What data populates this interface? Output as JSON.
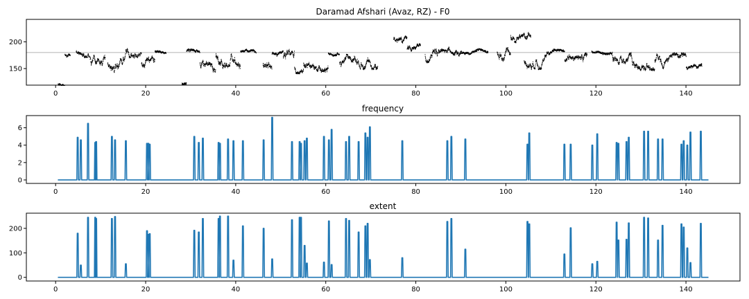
{
  "chart_data": [
    {
      "type": "scatter",
      "title": "Daramad Afshari (Avaz, RZ) - F0",
      "xlim": [
        -6.5,
        152.0
      ],
      "ylim": [
        119,
        242
      ],
      "xticks": [
        0,
        20,
        40,
        60,
        80,
        100,
        120,
        140
      ],
      "yticks": [
        150,
        200
      ],
      "reference_line": 180,
      "grid": false,
      "series": [
        {
          "segments": [
            {
              "x": [
                0.5,
                2.0
              ],
              "base": 122,
              "amp": 4
            },
            {
              "x": [
                2.0,
                3.2
              ],
              "base": 178,
              "amp": 5
            },
            {
              "x": [
                4.5,
                7.5
              ],
              "base": 182,
              "amp": 10
            },
            {
              "x": [
                7.6,
                11.0
              ],
              "base": 172,
              "amp": 18
            },
            {
              "x": [
                11.5,
                15.5
              ],
              "base": 162,
              "amp": 18
            },
            {
              "x": [
                15.5,
                19.0
              ],
              "base": 184,
              "amp": 12
            },
            {
              "x": [
                19.0,
                22.0
              ],
              "base": 162,
              "amp": 15
            },
            {
              "x": [
                22.0,
                24.5
              ],
              "base": 183,
              "amp": 3
            },
            {
              "x": [
                28.0,
                29.0
              ],
              "base": 122,
              "amp": 4
            },
            {
              "x": [
                29.0,
                32.0
              ],
              "base": 182,
              "amp": 6
            },
            {
              "x": [
                32.0,
                35.5
              ],
              "base": 160,
              "amp": 15
            },
            {
              "x": [
                35.5,
                41.0
              ],
              "base": 172,
              "amp": 20
            },
            {
              "x": [
                41.0,
                44.5
              ],
              "base": 183,
              "amp": 3
            },
            {
              "x": [
                46.0,
                48.0
              ],
              "base": 160,
              "amp": 15
            },
            {
              "x": [
                48.0,
                50.5
              ],
              "base": 180,
              "amp": 5
            },
            {
              "x": [
                50.5,
                53.0
              ],
              "base": 170,
              "amp": 18
            },
            {
              "x": [
                53.0,
                55.0
              ],
              "base": 152,
              "amp": 10
            },
            {
              "x": [
                55.0,
                60.5
              ],
              "base": 160,
              "amp": 15
            },
            {
              "x": [
                60.5,
                63.0
              ],
              "base": 180,
              "amp": 5
            },
            {
              "x": [
                63.0,
                67.0
              ],
              "base": 162,
              "amp": 15
            },
            {
              "x": [
                67.0,
                71.5
              ],
              "base": 165,
              "amp": 15
            },
            {
              "x": [
                75.0,
                78.0
              ],
              "base": 205,
              "amp": 12
            },
            {
              "x": [
                78.0,
                81.0
              ],
              "base": 186,
              "amp": 10
            },
            {
              "x": [
                82.0,
                85.5
              ],
              "base": 178,
              "amp": 15
            },
            {
              "x": [
                85.5,
                90.0
              ],
              "base": 185,
              "amp": 12
            },
            {
              "x": [
                90.0,
                96.0
              ],
              "base": 182,
              "amp": 5
            },
            {
              "x": [
                98.0,
                101.0
              ],
              "base": 180,
              "amp": 15
            },
            {
              "x": [
                101.0,
                105.5
              ],
              "base": 212,
              "amp": 12
            },
            {
              "x": [
                104.0,
                109.0
              ],
              "base": 165,
              "amp": 15
            },
            {
              "x": [
                109.0,
                113.0
              ],
              "base": 180,
              "amp": 6
            },
            {
              "x": [
                113.0,
                118.0
              ],
              "base": 166,
              "amp": 15
            },
            {
              "x": [
                119.0,
                123.5
              ],
              "base": 182,
              "amp": 4
            },
            {
              "x": [
                123.5,
                128.0
              ],
              "base": 178,
              "amp": 18
            },
            {
              "x": [
                128.0,
                133.0
              ],
              "base": 162,
              "amp": 14
            },
            {
              "x": [
                133.0,
                140.0
              ],
              "base": 165,
              "amp": 14
            },
            {
              "x": [
                140.0,
                143.5
              ],
              "base": 155,
              "amp": 8
            }
          ]
        }
      ]
    },
    {
      "type": "line",
      "title": "frequency",
      "xlim": [
        -6.5,
        152.0
      ],
      "ylim": [
        -0.4,
        7.4
      ],
      "xticks": [
        0,
        20,
        40,
        60,
        80,
        100,
        120,
        140
      ],
      "yticks": [
        0,
        2,
        4,
        6
      ],
      "grid": false,
      "baseline": 0,
      "x_range": [
        0.5,
        145.0
      ],
      "spikes": [
        [
          4.9,
          4.9
        ],
        [
          5.6,
          4.6
        ],
        [
          7.2,
          6.5
        ],
        [
          8.8,
          4.3
        ],
        [
          9.0,
          4.4
        ],
        [
          12.5,
          5.0
        ],
        [
          13.2,
          4.6
        ],
        [
          15.6,
          4.5
        ],
        [
          20.3,
          4.2
        ],
        [
          20.6,
          4.2
        ],
        [
          20.9,
          4.1
        ],
        [
          30.8,
          5.0
        ],
        [
          31.8,
          4.3
        ],
        [
          32.7,
          4.8
        ],
        [
          36.2,
          4.3
        ],
        [
          36.5,
          4.2
        ],
        [
          38.3,
          4.7
        ],
        [
          39.5,
          4.5
        ],
        [
          41.6,
          4.5
        ],
        [
          46.2,
          4.6
        ],
        [
          48.1,
          7.2
        ],
        [
          52.5,
          4.4
        ],
        [
          54.2,
          4.4
        ],
        [
          54.5,
          4.2
        ],
        [
          55.3,
          4.5
        ],
        [
          55.8,
          4.8
        ],
        [
          59.6,
          5.0
        ],
        [
          60.7,
          4.6
        ],
        [
          61.3,
          5.8
        ],
        [
          64.5,
          4.4
        ],
        [
          65.2,
          5.0
        ],
        [
          67.3,
          4.4
        ],
        [
          68.8,
          5.4
        ],
        [
          69.3,
          4.9
        ],
        [
          69.8,
          6.1
        ],
        [
          77.0,
          4.5
        ],
        [
          87.0,
          4.5
        ],
        [
          87.9,
          5.0
        ],
        [
          91.0,
          4.7
        ],
        [
          104.8,
          4.1
        ],
        [
          105.2,
          5.4
        ],
        [
          113.0,
          4.1
        ],
        [
          114.4,
          4.1
        ],
        [
          119.2,
          4.0
        ],
        [
          120.3,
          5.3
        ],
        [
          124.6,
          4.3
        ],
        [
          125.0,
          4.2
        ],
        [
          126.8,
          4.4
        ],
        [
          127.3,
          4.9
        ],
        [
          130.7,
          5.6
        ],
        [
          131.6,
          5.6
        ],
        [
          133.8,
          4.7
        ],
        [
          134.8,
          4.7
        ],
        [
          139.0,
          4.1
        ],
        [
          139.5,
          4.5
        ],
        [
          140.3,
          4.0
        ],
        [
          141.0,
          5.5
        ],
        [
          143.3,
          5.6
        ]
      ]
    },
    {
      "type": "line",
      "title": "extent",
      "xlim": [
        -6.5,
        152.0
      ],
      "ylim": [
        -15,
        262
      ],
      "xticks": [
        0,
        20,
        40,
        60,
        80,
        100,
        120,
        140
      ],
      "yticks": [
        0,
        100,
        200
      ],
      "grid": false,
      "baseline": 0,
      "x_range": [
        0.5,
        145.0
      ],
      "spikes": [
        [
          4.9,
          180
        ],
        [
          5.6,
          50
        ],
        [
          7.2,
          245
        ],
        [
          8.8,
          245
        ],
        [
          9.0,
          240
        ],
        [
          12.5,
          240
        ],
        [
          13.2,
          248
        ],
        [
          15.6,
          55
        ],
        [
          20.3,
          190
        ],
        [
          20.6,
          175
        ],
        [
          20.9,
          178
        ],
        [
          30.8,
          192
        ],
        [
          31.8,
          185
        ],
        [
          32.7,
          240
        ],
        [
          36.2,
          240
        ],
        [
          36.5,
          250
        ],
        [
          38.3,
          250
        ],
        [
          39.5,
          70
        ],
        [
          41.6,
          210
        ],
        [
          46.2,
          200
        ],
        [
          48.1,
          75
        ],
        [
          52.5,
          235
        ],
        [
          54.2,
          245
        ],
        [
          54.5,
          245
        ],
        [
          55.3,
          130
        ],
        [
          55.8,
          58
        ],
        [
          59.6,
          62
        ],
        [
          60.7,
          230
        ],
        [
          61.3,
          52
        ],
        [
          64.5,
          240
        ],
        [
          65.2,
          232
        ],
        [
          67.3,
          185
        ],
        [
          68.8,
          210
        ],
        [
          69.3,
          220
        ],
        [
          69.8,
          72
        ],
        [
          77.0,
          80
        ],
        [
          87.0,
          228
        ],
        [
          87.9,
          240
        ],
        [
          91.0,
          115
        ],
        [
          104.8,
          228
        ],
        [
          105.2,
          218
        ],
        [
          113.0,
          95
        ],
        [
          114.4,
          202
        ],
        [
          119.2,
          55
        ],
        [
          120.3,
          65
        ],
        [
          124.6,
          225
        ],
        [
          125.0,
          152
        ],
        [
          126.8,
          155
        ],
        [
          127.3,
          222
        ],
        [
          130.7,
          245
        ],
        [
          131.6,
          242
        ],
        [
          133.8,
          152
        ],
        [
          134.8,
          212
        ],
        [
          139.0,
          218
        ],
        [
          139.5,
          205
        ],
        [
          140.3,
          120
        ],
        [
          141.0,
          60
        ],
        [
          143.3,
          220
        ]
      ]
    }
  ],
  "colors": {
    "f0_points": "#000000",
    "reference_line": "#b0b0b0",
    "series_line": "#1f77b4"
  }
}
